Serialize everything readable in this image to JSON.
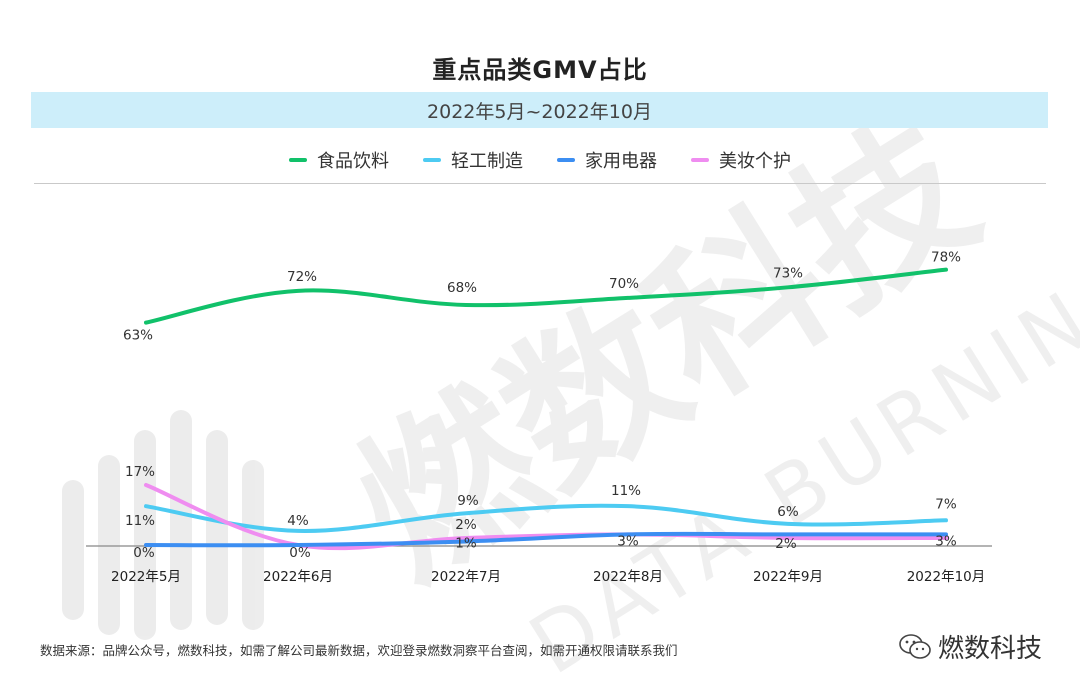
{
  "title": "重点品类GMV占比",
  "subtitle": "2022年5月~2022年10月",
  "footer": {
    "source": "数据来源：品牌公众号，燃数科技，如需了解公司最新数据，欢迎登录燃数洞察平台查阅，如需开通权限请联系我们",
    "logo_text": "燃数科技"
  },
  "watermark": {
    "cn": "燃数科技",
    "en": "DATA BURNING"
  },
  "colors": {
    "food": "#11c16a",
    "light_industry": "#4dcbf2",
    "appliance": "#3c8ef2",
    "beauty": "#ef8df0",
    "subtitle_bg": "#cdeefa"
  },
  "chart_data": {
    "type": "line",
    "categories": [
      "2022年5月",
      "2022年6月",
      "2022年7月",
      "2022年8月",
      "2022年9月",
      "2022年10月"
    ],
    "series": [
      {
        "name": "食品饮料",
        "color": "#11c16a",
        "values": [
          63,
          72,
          68,
          70,
          73,
          78
        ],
        "labels": [
          "63%",
          "72%",
          "68%",
          "70%",
          "73%",
          "78%"
        ]
      },
      {
        "name": "轻工制造",
        "color": "#4dcbf2",
        "values": [
          11,
          4,
          9,
          11,
          6,
          7
        ],
        "labels": [
          "11%",
          "4%",
          "9%",
          "11%",
          "6%",
          "7%"
        ]
      },
      {
        "name": "家用电器",
        "color": "#3c8ef2",
        "values": [
          0,
          0,
          1,
          3,
          3,
          3
        ],
        "labels": [
          "0%",
          "",
          "1%",
          "3%",
          "",
          "3%"
        ]
      },
      {
        "name": "美妆个护",
        "color": "#ef8df0",
        "values": [
          17,
          0,
          2,
          3,
          2,
          2
        ],
        "labels": [
          "17%",
          "0%",
          "2%",
          "",
          "2%",
          ""
        ]
      }
    ],
    "ylim": [
      0,
      80
    ],
    "grid": false,
    "legend_position": "top-center"
  }
}
